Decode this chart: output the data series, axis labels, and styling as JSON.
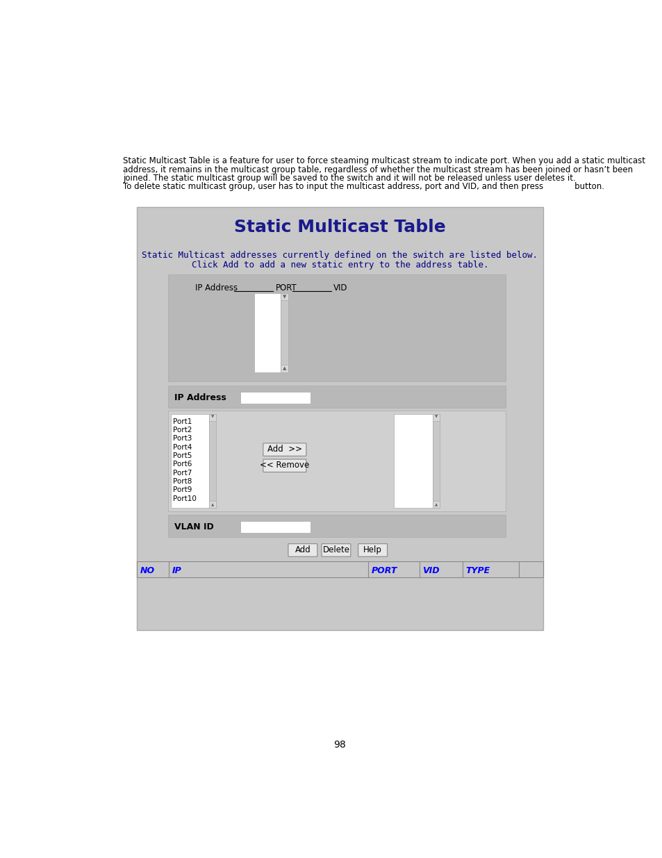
{
  "panel_title": "Static Multicast Table",
  "panel_title_color": "#1a1a8c",
  "sub_text_line1": "Static Multicast addresses currently defined on the switch are listed below.",
  "sub_text_line2": "Click Add to add a new static entry to the address table.",
  "sub_text_color": "#000080",
  "panel_bg": "#c8c8c8",
  "white": "#ffffff",
  "table_header_color": "#0000ff",
  "table_header_cols": [
    "NO",
    "IP",
    "PORT",
    "VID",
    "TYPE"
  ],
  "port_list": [
    "Port1",
    "Port2",
    "Port3",
    "Port4",
    "Port5",
    "Port6",
    "Port7",
    "Port8",
    "Port9",
    "Port10"
  ],
  "page_number": "98",
  "body_text_color": "#000000",
  "body_text_size": 8.5,
  "body_line1": "Static Multicast Table is a feature for user to force steaming multicast stream to indicate port. When you add a static multicast",
  "body_line2": "address, it remains in the multicast group table, regardless of whether the multicast stream has been joined or hasn’t been",
  "body_line3": "joined. The static multicast group will be saved to the switch and it will not be released unless user deletes it.",
  "body_line4": "To delete static multicast group, user has to input the multicast address, port and VID, and then press            button."
}
